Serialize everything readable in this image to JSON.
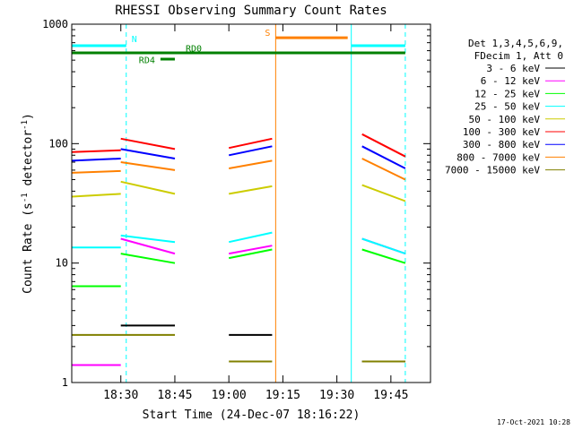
{
  "chart_data": {
    "type": "line",
    "title": "RHESSI Observing Summary Count Rates",
    "xlabel": "Start Time (24-Dec-07 18:16:22)",
    "ylabel": "Count Rate (s^-1 detector^-1)",
    "ylabel_parts": {
      "pre": "Count Rate (s",
      "sup1": "-1",
      "mid": " detector",
      "sup2": "-1",
      "post": ")"
    },
    "yscale": "log",
    "xlim": [
      "18:16:22",
      "19:56:00"
    ],
    "ylim": [
      1,
      1000
    ],
    "x_ticks": [
      "18:30",
      "18:45",
      "19:00",
      "19:15",
      "19:30",
      "19:45"
    ],
    "y_ticks": [
      "1",
      "10",
      "100",
      "1000"
    ],
    "legend_header": [
      "Det 1,3,4,5,6,9,",
      "FDecim 1, Att 0"
    ],
    "legend_placement": "right",
    "timestamp": "17-Oct-2021 10:28",
    "series": [
      {
        "name": "3 - 6 keV",
        "color": "#000000",
        "segments": [
          {
            "x": [
              "18:30",
              "18:45"
            ],
            "y": [
              3.0,
              3.0
            ]
          },
          {
            "x": [
              "19:00",
              "19:12"
            ],
            "y": [
              2.5,
              2.5
            ]
          },
          {
            "x": [
              "19:37",
              "19:49"
            ],
            "y": [
              1.5,
              1.5
            ]
          }
        ]
      },
      {
        "name": "6 - 12 keV",
        "color": "#ff00ff",
        "segments": [
          {
            "x": [
              "18:16:22",
              "18:30"
            ],
            "y": [
              1.4,
              1.4
            ]
          },
          {
            "x": [
              "18:30",
              "18:45"
            ],
            "y": [
              16,
              12
            ]
          },
          {
            "x": [
              "19:00",
              "19:12"
            ],
            "y": [
              12,
              14
            ]
          },
          {
            "x": [
              "19:37",
              "19:49"
            ],
            "y": [
              16,
              12
            ]
          }
        ]
      },
      {
        "name": "12 - 25 keV",
        "color": "#00ff00",
        "segments": [
          {
            "x": [
              "18:16:22",
              "18:30"
            ],
            "y": [
              6.4,
              6.4
            ]
          },
          {
            "x": [
              "18:30",
              "18:45"
            ],
            "y": [
              12,
              10
            ]
          },
          {
            "x": [
              "19:00",
              "19:12"
            ],
            "y": [
              11,
              13
            ]
          },
          {
            "x": [
              "19:37",
              "19:49"
            ],
            "y": [
              13,
              10
            ]
          }
        ]
      },
      {
        "name": "25 - 50 keV",
        "color": "#00ffff",
        "segments": [
          {
            "x": [
              "18:16:22",
              "18:30"
            ],
            "y": [
              13.5,
              13.5
            ]
          },
          {
            "x": [
              "18:30",
              "18:45"
            ],
            "y": [
              17,
              15
            ]
          },
          {
            "x": [
              "19:00",
              "19:12"
            ],
            "y": [
              15,
              18
            ]
          },
          {
            "x": [
              "19:37",
              "19:49"
            ],
            "y": [
              16,
              12
            ]
          }
        ]
      },
      {
        "name": "50 - 100 keV",
        "color": "#cccc00",
        "segments": [
          {
            "x": [
              "18:16:22",
              "18:30"
            ],
            "y": [
              36,
              38
            ]
          },
          {
            "x": [
              "18:30",
              "18:45"
            ],
            "y": [
              48,
              38
            ]
          },
          {
            "x": [
              "19:00",
              "19:12"
            ],
            "y": [
              38,
              44
            ]
          },
          {
            "x": [
              "19:37",
              "19:49"
            ],
            "y": [
              45,
              33
            ]
          }
        ]
      },
      {
        "name": "100 - 300 keV",
        "color": "#ff0000",
        "segments": [
          {
            "x": [
              "18:16:22",
              "18:30"
            ],
            "y": [
              85,
              88
            ]
          },
          {
            "x": [
              "18:30",
              "18:45"
            ],
            "y": [
              110,
              90
            ]
          },
          {
            "x": [
              "19:00",
              "19:12"
            ],
            "y": [
              92,
              110
            ]
          },
          {
            "x": [
              "19:37",
              "19:49"
            ],
            "y": [
              120,
              78
            ]
          }
        ]
      },
      {
        "name": "300 - 800 keV",
        "color": "#0000ff",
        "segments": [
          {
            "x": [
              "18:16:22",
              "18:30"
            ],
            "y": [
              72,
              75
            ]
          },
          {
            "x": [
              "18:30",
              "18:45"
            ],
            "y": [
              90,
              75
            ]
          },
          {
            "x": [
              "19:00",
              "19:12"
            ],
            "y": [
              80,
              95
            ]
          },
          {
            "x": [
              "19:37",
              "19:49"
            ],
            "y": [
              95,
              62
            ]
          }
        ]
      },
      {
        "name": "800 - 7000 keV",
        "color": "#ff8000",
        "segments": [
          {
            "x": [
              "18:16:22",
              "18:30"
            ],
            "y": [
              57,
              59
            ]
          },
          {
            "x": [
              "18:30",
              "18:45"
            ],
            "y": [
              70,
              60
            ]
          },
          {
            "x": [
              "19:00",
              "19:12"
            ],
            "y": [
              62,
              72
            ]
          },
          {
            "x": [
              "19:37",
              "19:49"
            ],
            "y": [
              75,
              50
            ]
          }
        ]
      },
      {
        "name": "7000 - 15000 keV",
        "color": "#808000",
        "segments": [
          {
            "x": [
              "18:16:22",
              "18:45"
            ],
            "y": [
              2.5,
              2.5
            ]
          },
          {
            "x": [
              "19:00",
              "19:12"
            ],
            "y": [
              1.5,
              1.5
            ]
          },
          {
            "x": [
              "19:37",
              "19:49"
            ],
            "y": [
              1.5,
              1.5
            ]
          }
        ]
      }
    ],
    "state_bars": [
      {
        "label": "N",
        "color": "#00ffff",
        "level": 660,
        "segments": [
          [
            "18:16:22",
            "18:31:30"
          ],
          [
            "19:34",
            "19:49"
          ]
        ],
        "label_x": "18:33",
        "label_y": 710
      },
      {
        "label": "S",
        "color": "#ff8000",
        "level": 770,
        "segments": [
          [
            "19:13",
            "19:33"
          ]
        ],
        "label_x": "19:10",
        "label_y": 800
      },
      {
        "label": "RD0",
        "color": "#008000",
        "level": 575,
        "segments": [
          [
            "18:16:22",
            "19:49"
          ]
        ],
        "label_x": "18:48",
        "label_y": 590
      },
      {
        "label": "RD4",
        "color": "#008000",
        "level": 510,
        "segments": [
          [
            "18:41",
            "18:45"
          ]
        ],
        "label_x": "18:35",
        "label_y": 470
      }
    ],
    "vlines": [
      {
        "x": "18:31:30",
        "color": "#00ffff",
        "style": "dashed"
      },
      {
        "x": "19:13",
        "color": "#ff8000",
        "style": "solid"
      },
      {
        "x": "19:34",
        "color": "#00ffff",
        "style": "solid"
      },
      {
        "x": "19:49",
        "color": "#00ffff",
        "style": "dashed"
      },
      {
        "x": "18:16:22",
        "color": "#00ffff",
        "style": "solid"
      }
    ]
  }
}
